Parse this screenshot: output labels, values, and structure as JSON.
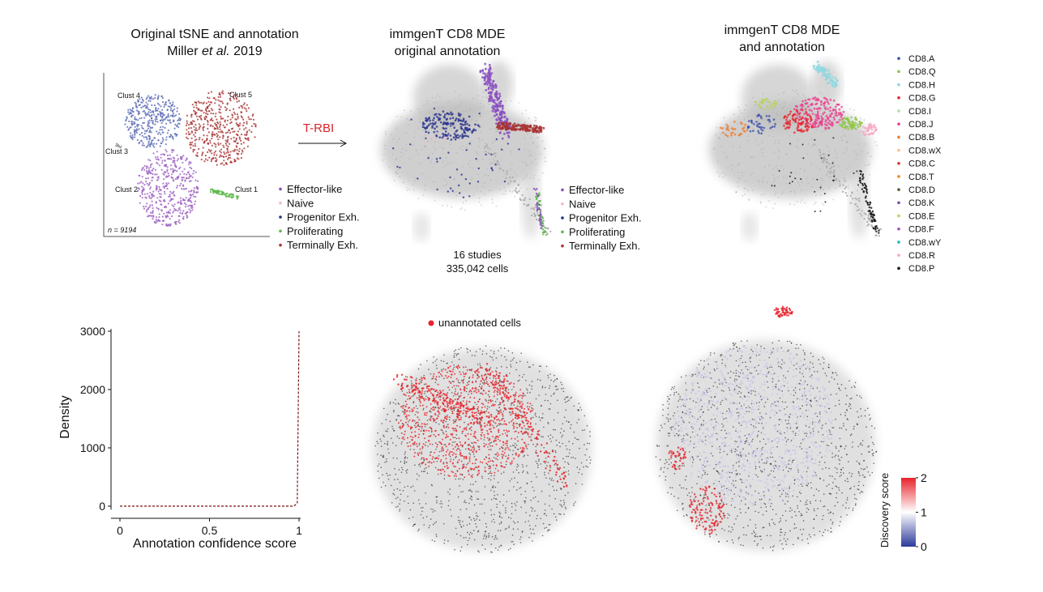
{
  "tsne_panel": {
    "title": "Original tSNE and annotation",
    "citation": {
      "author": "Miller",
      "etal": "et al.",
      "year": "2019"
    },
    "cluster_labels": [
      "Clust 4",
      "Clust 5",
      "Clust 3",
      "Clust 2",
      "Clust 1"
    ],
    "n_label": "n = 9194",
    "legend": [
      {
        "label": "Effector-like",
        "color": "#8a4fbf"
      },
      {
        "label": "Naive",
        "color": "#f4b6c8"
      },
      {
        "label": "Progenitor Exh.",
        "color": "#27318c"
      },
      {
        "label": "Proliferating",
        "color": "#5fb84a"
      },
      {
        "label": "Terminally Exh.",
        "color": "#a83232"
      }
    ]
  },
  "arrow_label": "T-RBI",
  "mde_panel": {
    "title": [
      "immgenT CD8 MDE",
      "original annotation"
    ],
    "legend": [
      {
        "label": "Effector-like",
        "color": "#8a4fbf"
      },
      {
        "label": "Naive",
        "color": "#f4b6c8"
      },
      {
        "label": "Progenitor Exh.",
        "color": "#27318c"
      },
      {
        "label": "Proliferating",
        "color": "#5fb84a"
      },
      {
        "label": "Terminally Exh.",
        "color": "#a83232"
      }
    ],
    "studies": "16 studies",
    "cells": "335,042 cells"
  },
  "mde_annot_panel": {
    "title": [
      "immgenT CD8 MDE",
      "and annotation"
    ],
    "legend": [
      {
        "label": "CD8.A",
        "color": "#3a50a8"
      },
      {
        "label": "CD8.Q",
        "color": "#8cc63f"
      },
      {
        "label": "CD8.H",
        "color": "#8ed8e0"
      },
      {
        "label": "CD8.G",
        "color": "#e8232a"
      },
      {
        "label": "CD8.I",
        "color": "#b8dca0"
      },
      {
        "label": "CD8.J",
        "color": "#ec3b8c"
      },
      {
        "label": "CD8.B",
        "color": "#f07a2a"
      },
      {
        "label": "CD8.wX",
        "color": "#f5c08a"
      },
      {
        "label": "CD8.C",
        "color": "#d9342b"
      },
      {
        "label": "CD8.T",
        "color": "#f08a24"
      },
      {
        "label": "CD8.D",
        "color": "#5a5a3a"
      },
      {
        "label": "CD8.K",
        "color": "#7a4fa0"
      },
      {
        "label": "CD8.E",
        "color": "#b5d25a"
      },
      {
        "label": "CD8.F",
        "color": "#9a4fb5"
      },
      {
        "label": "CD8.wY",
        "color": "#20b8c8"
      },
      {
        "label": "CD8.R",
        "color": "#f4a6c0"
      },
      {
        "label": "CD8.P",
        "color": "#111111"
      }
    ]
  },
  "chart_data": {
    "type": "line",
    "x_label": "Annotation confidence score",
    "y_label": "Density",
    "x": [
      0,
      0.5,
      0.97,
      0.99,
      1
    ],
    "values": [
      0,
      0,
      0,
      50,
      3000
    ],
    "color": "#7a1010",
    "dashed": true,
    "xlim": [
      -0.05,
      1
    ],
    "ylim": [
      -60,
      3040
    ],
    "xticks": [
      0,
      0.5,
      1
    ],
    "yticks": [
      0,
      1000,
      2000,
      3000
    ]
  },
  "unannotated_panel": {
    "legend_label": "unannotated cells",
    "color": "#e8232a"
  },
  "discovery_panel": {
    "colorbar_title": "Discovery score",
    "clim": [
      0,
      2
    ],
    "colorbar_ticks": [
      0,
      1,
      2
    ],
    "colors": [
      "#2b3a9a",
      "#ffffff",
      "#e8232a"
    ]
  }
}
